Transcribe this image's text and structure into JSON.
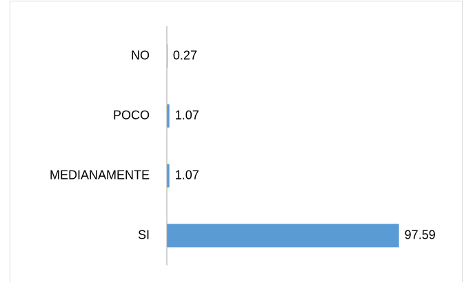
{
  "chart_data": {
    "type": "barh",
    "categories": [
      "NO",
      "POCO",
      "MEDIANAMENTE",
      "SI"
    ],
    "values": [
      0.27,
      1.07,
      1.07,
      97.59
    ],
    "color": "#5b9bd5",
    "xlim": [
      0,
      100
    ]
  }
}
